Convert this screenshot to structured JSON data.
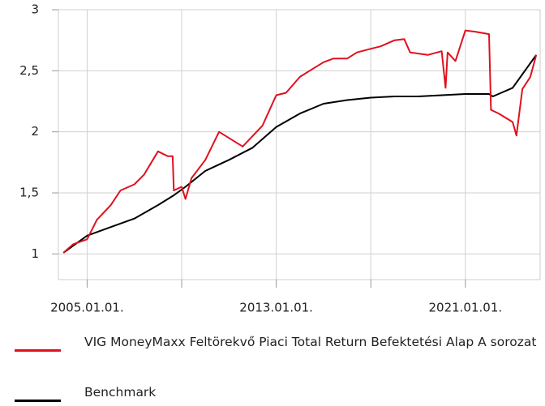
{
  "chart_data": {
    "type": "line",
    "xlim": [
      "2003-10-15",
      "2024-03-01"
    ],
    "ylim": [
      0.79,
      3
    ],
    "xticks": [
      {
        "value": "2005-01-01",
        "label": "2005.01.01."
      },
      {
        "value": "2009-01-01",
        "label": null
      },
      {
        "value": "2013-01-01",
        "label": "2013.01.01."
      },
      {
        "value": "2017-01-01",
        "label": null
      },
      {
        "value": "2021-01-01",
        "label": "2021.01.01."
      }
    ],
    "yticks": [
      1,
      {
        "value": 1.5,
        "label": "1,5"
      },
      2,
      {
        "value": 2.5,
        "label": "2,5"
      },
      3
    ],
    "grid": true,
    "legend": "bottom",
    "series": [
      {
        "name": "VIG MoneyMaxx Feltörekvő Piaci Total Return Befektetési Alap A sorozat",
        "color": "#e0101e",
        "x": [
          "2004-01-01",
          "2004-06-01",
          "2005-01-01",
          "2005-06-01",
          "2006-01-01",
          "2006-06-01",
          "2007-01-01",
          "2007-06-01",
          "2008-01-01",
          "2008-06-01",
          "2008-08-15",
          "2008-09-01",
          "2009-01-01",
          "2009-03-01",
          "2009-06-01",
          "2010-01-01",
          "2010-08-01",
          "2011-08-01",
          "2012-06-01",
          "2013-01-01",
          "2013-06-01",
          "2014-01-01",
          "2014-06-01",
          "2015-01-01",
          "2015-06-01",
          "2016-01-01",
          "2016-06-01",
          "2017-01-01",
          "2017-06-01",
          "2018-01-01",
          "2018-06-01",
          "2018-09-01",
          "2019-06-01",
          "2020-01-01",
          "2020-03-01",
          "2020-04-01",
          "2020-08-01",
          "2021-01-01",
          "2021-06-01",
          "2022-01-01",
          "2022-02-01",
          "2022-06-01",
          "2023-01-01",
          "2023-03-01",
          "2023-06-01",
          "2023-10-01",
          "2024-01-01"
        ],
        "values": [
          1.01,
          1.08,
          1.12,
          1.28,
          1.4,
          1.52,
          1.57,
          1.65,
          1.84,
          1.8,
          1.8,
          1.52,
          1.55,
          1.45,
          1.62,
          1.77,
          2.0,
          1.88,
          2.05,
          2.3,
          2.32,
          2.45,
          2.5,
          2.57,
          2.6,
          2.6,
          2.65,
          2.68,
          2.7,
          2.75,
          2.76,
          2.65,
          2.63,
          2.66,
          2.36,
          2.65,
          2.58,
          2.83,
          2.82,
          2.8,
          2.18,
          2.15,
          2.08,
          1.97,
          2.35,
          2.45,
          2.63
        ]
      },
      {
        "name": "Benchmark",
        "color": "#000000",
        "x": [
          "2004-01-01",
          "2005-01-01",
          "2006-01-01",
          "2007-01-01",
          "2008-01-01",
          "2008-09-01",
          "2009-03-01",
          "2010-01-01",
          "2011-01-01",
          "2012-01-01",
          "2013-01-01",
          "2014-01-01",
          "2015-01-01",
          "2016-01-01",
          "2017-01-01",
          "2018-01-01",
          "2019-01-01",
          "2020-01-01",
          "2021-01-01",
          "2022-01-01",
          "2022-03-01",
          "2023-01-01",
          "2024-01-01"
        ],
        "values": [
          1.01,
          1.15,
          1.22,
          1.29,
          1.4,
          1.48,
          1.55,
          1.68,
          1.77,
          1.87,
          2.04,
          2.15,
          2.23,
          2.26,
          2.28,
          2.29,
          2.29,
          2.3,
          2.31,
          2.31,
          2.29,
          2.36,
          2.63
        ]
      }
    ]
  }
}
